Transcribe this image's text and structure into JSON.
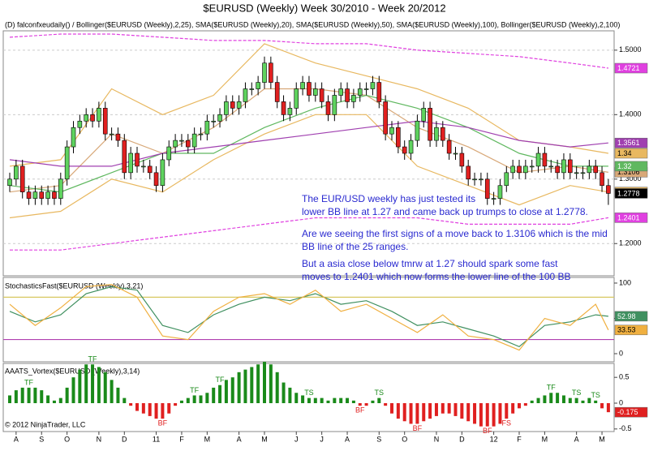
{
  "title": "$EURUSD (Weekly)  Week 30/2010 - Week 20/2012",
  "copyright": "© 2012 NinjaTrader, LLC",
  "xticks": [
    {
      "value": 1,
      "label": "A"
    },
    {
      "value": 5,
      "label": "S"
    },
    {
      "value": 9,
      "label": "O"
    },
    {
      "value": 14,
      "label": "N"
    },
    {
      "value": 18,
      "label": "D"
    },
    {
      "value": 23,
      "label": "11"
    },
    {
      "value": 27,
      "label": "F"
    },
    {
      "value": 31,
      "label": "M"
    },
    {
      "value": 36,
      "label": "A"
    },
    {
      "value": 40,
      "label": "M"
    },
    {
      "value": 45,
      "label": "J"
    },
    {
      "value": 49,
      "label": "J"
    },
    {
      "value": 53,
      "label": "A"
    },
    {
      "value": 58,
      "label": "S"
    },
    {
      "value": 62,
      "label": "O"
    },
    {
      "value": 67,
      "label": "N"
    },
    {
      "value": 71,
      "label": "D"
    },
    {
      "value": 76,
      "label": "12"
    },
    {
      "value": 80,
      "label": "F"
    },
    {
      "value": 84,
      "label": "M"
    },
    {
      "value": 89,
      "label": "A"
    },
    {
      "value": 93,
      "label": "M"
    }
  ],
  "chart_data": [
    {
      "type": "candlestick",
      "header": "(D)  falconfxeudaily() / Bollinger($EURUSD (Weekly),2,25), SMA($EURUSD (Weekly),20), SMA($EURUSD (Weekly),50), SMA($EURUSD (Weekly),100), Bollinger($EURUSD (Weekly),2,100)",
      "up_color": "#5fd35f",
      "down_color": "#e02020",
      "ylim": [
        1.15,
        1.53
      ],
      "yticks": [
        {
          "value": 1.2,
          "label": "1.2000"
        },
        {
          "value": 1.3,
          "label": "1.3000"
        },
        {
          "value": 1.4,
          "label": "1.4000"
        },
        {
          "value": 1.5,
          "label": "1.5000"
        }
      ],
      "grid": true,
      "open": [
        1.29,
        1.3,
        1.32,
        1.28,
        1.27,
        1.28,
        1.27,
        1.28,
        1.27,
        1.3,
        1.35,
        1.38,
        1.39,
        1.4,
        1.39,
        1.41,
        1.37,
        1.37,
        1.36,
        1.31,
        1.34,
        1.32,
        1.32,
        1.31,
        1.29,
        1.33,
        1.35,
        1.36,
        1.36,
        1.35,
        1.37,
        1.37,
        1.39,
        1.39,
        1.4,
        1.42,
        1.41,
        1.42,
        1.44,
        1.44,
        1.45,
        1.48,
        1.45,
        1.42,
        1.4,
        1.41,
        1.44,
        1.45,
        1.43,
        1.44,
        1.42,
        1.4,
        1.43,
        1.44,
        1.42,
        1.43,
        1.44,
        1.44,
        1.45,
        1.42,
        1.37,
        1.38,
        1.35,
        1.34,
        1.36,
        1.39,
        1.41,
        1.36,
        1.38,
        1.36,
        1.34,
        1.34,
        1.32,
        1.3,
        1.3,
        1.3,
        1.27,
        1.27,
        1.29,
        1.31,
        1.32,
        1.31,
        1.32,
        1.32,
        1.34,
        1.32,
        1.32,
        1.31,
        1.33,
        1.31,
        1.31,
        1.31,
        1.32,
        1.31,
        1.29
      ],
      "high": [
        1.31,
        1.33,
        1.33,
        1.29,
        1.29,
        1.29,
        1.29,
        1.29,
        1.31,
        1.36,
        1.39,
        1.4,
        1.41,
        1.41,
        1.42,
        1.42,
        1.38,
        1.38,
        1.37,
        1.35,
        1.35,
        1.33,
        1.33,
        1.32,
        1.34,
        1.36,
        1.37,
        1.37,
        1.37,
        1.38,
        1.38,
        1.4,
        1.4,
        1.41,
        1.43,
        1.43,
        1.43,
        1.45,
        1.45,
        1.46,
        1.49,
        1.49,
        1.46,
        1.43,
        1.42,
        1.45,
        1.46,
        1.46,
        1.45,
        1.45,
        1.43,
        1.44,
        1.45,
        1.45,
        1.44,
        1.45,
        1.45,
        1.46,
        1.46,
        1.43,
        1.39,
        1.39,
        1.36,
        1.37,
        1.4,
        1.42,
        1.42,
        1.39,
        1.39,
        1.37,
        1.35,
        1.35,
        1.33,
        1.31,
        1.31,
        1.31,
        1.28,
        1.3,
        1.32,
        1.33,
        1.33,
        1.33,
        1.33,
        1.35,
        1.35,
        1.33,
        1.33,
        1.34,
        1.34,
        1.32,
        1.32,
        1.33,
        1.33,
        1.32,
        1.3
      ],
      "low": [
        1.28,
        1.29,
        1.27,
        1.26,
        1.26,
        1.26,
        1.26,
        1.26,
        1.26,
        1.29,
        1.34,
        1.37,
        1.38,
        1.38,
        1.38,
        1.36,
        1.36,
        1.35,
        1.3,
        1.3,
        1.31,
        1.31,
        1.3,
        1.28,
        1.28,
        1.32,
        1.34,
        1.35,
        1.34,
        1.34,
        1.36,
        1.36,
        1.38,
        1.38,
        1.39,
        1.4,
        1.4,
        1.41,
        1.43,
        1.43,
        1.44,
        1.44,
        1.41,
        1.39,
        1.39,
        1.4,
        1.43,
        1.42,
        1.42,
        1.41,
        1.39,
        1.39,
        1.42,
        1.41,
        1.41,
        1.42,
        1.43,
        1.43,
        1.41,
        1.36,
        1.36,
        1.34,
        1.33,
        1.33,
        1.35,
        1.38,
        1.35,
        1.35,
        1.35,
        1.33,
        1.33,
        1.31,
        1.29,
        1.29,
        1.29,
        1.26,
        1.26,
        1.26,
        1.28,
        1.3,
        1.3,
        1.3,
        1.31,
        1.31,
        1.31,
        1.31,
        1.3,
        1.3,
        1.3,
        1.3,
        1.3,
        1.3,
        1.3,
        1.28,
        1.26
      ],
      "close": [
        1.3,
        1.32,
        1.28,
        1.27,
        1.28,
        1.27,
        1.28,
        1.27,
        1.3,
        1.35,
        1.38,
        1.39,
        1.4,
        1.39,
        1.41,
        1.37,
        1.37,
        1.36,
        1.31,
        1.34,
        1.32,
        1.32,
        1.31,
        1.29,
        1.33,
        1.35,
        1.36,
        1.36,
        1.35,
        1.37,
        1.37,
        1.39,
        1.39,
        1.4,
        1.42,
        1.41,
        1.42,
        1.44,
        1.44,
        1.45,
        1.48,
        1.45,
        1.42,
        1.4,
        1.41,
        1.44,
        1.45,
        1.43,
        1.44,
        1.42,
        1.4,
        1.43,
        1.44,
        1.42,
        1.43,
        1.44,
        1.44,
        1.45,
        1.42,
        1.37,
        1.38,
        1.35,
        1.34,
        1.36,
        1.39,
        1.41,
        1.36,
        1.38,
        1.36,
        1.34,
        1.34,
        1.32,
        1.3,
        1.3,
        1.3,
        1.27,
        1.27,
        1.29,
        1.31,
        1.32,
        1.31,
        1.32,
        1.32,
        1.34,
        1.32,
        1.32,
        1.31,
        1.33,
        1.31,
        1.31,
        1.31,
        1.32,
        1.31,
        1.29,
        1.2778
      ],
      "overlay_x": [
        0,
        8,
        16,
        24,
        32,
        40,
        48,
        56,
        64,
        72,
        80,
        88,
        94
      ],
      "overlays": [
        {
          "color": "#e8b860",
          "values": [
            1.32,
            1.33,
            1.44,
            1.4,
            1.43,
            1.51,
            1.48,
            1.46,
            1.44,
            1.41,
            1.36,
            1.35,
            1.34
          ]
        },
        {
          "color": "#d8a878",
          "values": [
            1.28,
            1.29,
            1.37,
            1.34,
            1.38,
            1.44,
            1.44,
            1.43,
            1.38,
            1.35,
            1.31,
            1.32,
            1.3106
          ]
        },
        {
          "color": "#e8b860",
          "values": [
            1.24,
            1.25,
            1.3,
            1.28,
            1.33,
            1.37,
            1.4,
            1.4,
            1.32,
            1.29,
            1.26,
            1.29,
            1.28
          ]
        },
        {
          "color": "#60b860",
          "values": [
            1.29,
            1.28,
            1.31,
            1.34,
            1.34,
            1.38,
            1.41,
            1.43,
            1.41,
            1.38,
            1.34,
            1.32,
            1.32
          ]
        },
        {
          "color": "#a040b0",
          "values": [
            1.33,
            1.32,
            1.32,
            1.34,
            1.35,
            1.36,
            1.37,
            1.38,
            1.39,
            1.38,
            1.36,
            1.35,
            1.3561
          ]
        },
        {
          "color": "#e040e0",
          "dash": true,
          "values": [
            1.52,
            1.525,
            1.525,
            1.52,
            1.515,
            1.515,
            1.51,
            1.51,
            1.5,
            1.495,
            1.49,
            1.48,
            1.4721
          ]
        },
        {
          "color": "#e040e0",
          "dash": true,
          "values": [
            1.19,
            1.19,
            1.2,
            1.21,
            1.22,
            1.23,
            1.24,
            1.24,
            1.24,
            1.23,
            1.23,
            1.23,
            1.2401
          ]
        }
      ],
      "notes": [
        "The EUR/USD weekly has just tested its",
        "lower BB line at 1.27 and came back up trumps to close at 1.2778.",
        "Are we seeing the first signs of a move back to 1.3106 which is the mid",
        "BB line of the 25 ranges.",
        "But a asia close below tmrw at 1.27 should spark some fast",
        "moves to 1.2401 which now forms the lower line of the 100 BB"
      ]
    },
    {
      "type": "line",
      "label": "StochasticsFast($EURUSD (Weekly),3,21)",
      "ylim": [
        -11.5,
        108
      ],
      "yticks": [
        0,
        50,
        100
      ],
      "levels": [
        80,
        20
      ],
      "level_colors": [
        "#d8c860",
        "#b040b0"
      ],
      "x": [
        0,
        4,
        8,
        12,
        16,
        20,
        24,
        28,
        32,
        36,
        40,
        44,
        48,
        52,
        56,
        60,
        64,
        68,
        72,
        76,
        80,
        84,
        88,
        92,
        94
      ],
      "series": [
        {
          "color": "#409060",
          "values": [
            60,
            45,
            55,
            85,
            95,
            90,
            40,
            30,
            55,
            70,
            80,
            75,
            85,
            70,
            75,
            60,
            40,
            45,
            35,
            25,
            10,
            40,
            45,
            55,
            52.98
          ]
        },
        {
          "color": "#f0b040",
          "values": [
            70,
            40,
            65,
            95,
            98,
            80,
            25,
            20,
            60,
            80,
            85,
            70,
            90,
            60,
            70,
            50,
            30,
            55,
            25,
            20,
            5,
            50,
            40,
            70,
            33.53
          ]
        }
      ]
    },
    {
      "type": "histogram",
      "label": "AAATS_Vortex($EURUSD (Weekly),3,14)",
      "ylim": [
        -0.55,
        0.77
      ],
      "yticks": [
        -0.5,
        0,
        0.5
      ],
      "up_color": "#1a8a1a",
      "down_color": "#e02020",
      "values": [
        0.15,
        0.25,
        0.3,
        0.3,
        0.3,
        0.25,
        0.15,
        0.05,
        0.1,
        0.3,
        0.5,
        0.65,
        0.75,
        0.75,
        0.7,
        0.6,
        0.45,
        0.3,
        0.1,
        -0.05,
        -0.15,
        -0.2,
        -0.25,
        -0.3,
        -0.3,
        -0.2,
        -0.05,
        0.05,
        0.1,
        0.15,
        0.15,
        0.2,
        0.3,
        0.35,
        0.45,
        0.5,
        0.6,
        0.65,
        0.7,
        0.75,
        0.8,
        0.75,
        0.6,
        0.4,
        0.3,
        0.2,
        0.15,
        0.1,
        0.1,
        0.1,
        0.05,
        0.1,
        0.1,
        0.1,
        0.05,
        -0.05,
        -0.05,
        0.05,
        0.1,
        -0.05,
        -0.2,
        -0.3,
        -0.35,
        -0.4,
        -0.4,
        -0.35,
        -0.3,
        -0.25,
        -0.2,
        -0.2,
        -0.25,
        -0.3,
        -0.35,
        -0.4,
        -0.45,
        -0.45,
        -0.45,
        -0.4,
        -0.3,
        -0.2,
        -0.1,
        -0.05,
        0.05,
        0.1,
        0.15,
        0.2,
        0.2,
        0.15,
        0.1,
        0.1,
        0.05,
        0.1,
        0.05,
        -0.1,
        -0.175
      ],
      "annotations": [
        {
          "x": 3,
          "text": "TF"
        },
        {
          "x": 13,
          "text": "TF"
        },
        {
          "x": 24,
          "text": "BF"
        },
        {
          "x": 29,
          "text": "TF"
        },
        {
          "x": 33,
          "text": "TF"
        },
        {
          "x": 47,
          "text": "TS"
        },
        {
          "x": 55,
          "text": "BF"
        },
        {
          "x": 58,
          "text": "TS"
        },
        {
          "x": 64,
          "text": "BF"
        },
        {
          "x": 75,
          "text": "BF"
        },
        {
          "x": 78,
          "text": "FS"
        },
        {
          "x": 85,
          "text": "TF"
        },
        {
          "x": 89,
          "text": "TS"
        },
        {
          "x": 92,
          "text": "TS"
        }
      ]
    }
  ]
}
